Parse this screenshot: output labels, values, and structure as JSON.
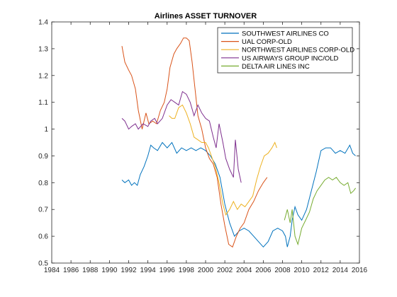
{
  "chart_data": {
    "type": "line",
    "title": "Airlines ASSET TURNOVER",
    "xlabel": "",
    "ylabel": "",
    "xlim": [
      1984,
      2016
    ],
    "ylim": [
      0.5,
      1.4
    ],
    "xticks": [
      1984,
      1986,
      1988,
      1990,
      1992,
      1994,
      1996,
      1998,
      2000,
      2002,
      2004,
      2006,
      2008,
      2010,
      2012,
      2014,
      2016
    ],
    "yticks": [
      0.5,
      0.6,
      0.7,
      0.8,
      0.9,
      1,
      1.1,
      1.2,
      1.3,
      1.4
    ],
    "grid": false,
    "legend_position": "top-right",
    "series": [
      {
        "name": "SOUTHWEST AIRLINES CO",
        "color": "#0072BD",
        "points": [
          [
            1991.3,
            0.81
          ],
          [
            1991.6,
            0.8
          ],
          [
            1992.0,
            0.81
          ],
          [
            1992.3,
            0.79
          ],
          [
            1992.6,
            0.8
          ],
          [
            1992.9,
            0.79
          ],
          [
            1993.2,
            0.83
          ],
          [
            1993.6,
            0.86
          ],
          [
            1994.0,
            0.9
          ],
          [
            1994.3,
            0.94
          ],
          [
            1994.6,
            0.93
          ],
          [
            1995.0,
            0.92
          ],
          [
            1995.5,
            0.95
          ],
          [
            1996.0,
            0.93
          ],
          [
            1996.5,
            0.95
          ],
          [
            1997.0,
            0.91
          ],
          [
            1997.5,
            0.93
          ],
          [
            1998.0,
            0.92
          ],
          [
            1998.5,
            0.93
          ],
          [
            1999.0,
            0.92
          ],
          [
            1999.5,
            0.93
          ],
          [
            2000.0,
            0.92
          ],
          [
            2000.5,
            0.9
          ],
          [
            2001.0,
            0.87
          ],
          [
            2001.5,
            0.82
          ],
          [
            2002.0,
            0.72
          ],
          [
            2002.5,
            0.65
          ],
          [
            2003.0,
            0.6
          ],
          [
            2003.5,
            0.62
          ],
          [
            2004.0,
            0.63
          ],
          [
            2004.5,
            0.62
          ],
          [
            2005.0,
            0.6
          ],
          [
            2005.5,
            0.58
          ],
          [
            2006.0,
            0.56
          ],
          [
            2006.5,
            0.58
          ],
          [
            2007.0,
            0.62
          ],
          [
            2007.5,
            0.63
          ],
          [
            2008.0,
            0.62
          ],
          [
            2008.3,
            0.6
          ],
          [
            2008.5,
            0.56
          ],
          [
            2008.8,
            0.6
          ],
          [
            2009.0,
            0.66
          ],
          [
            2009.3,
            0.71
          ],
          [
            2009.6,
            0.68
          ],
          [
            2010.0,
            0.66
          ],
          [
            2010.5,
            0.7
          ],
          [
            2011.0,
            0.77
          ],
          [
            2011.5,
            0.84
          ],
          [
            2012.0,
            0.92
          ],
          [
            2012.5,
            0.93
          ],
          [
            2013.0,
            0.93
          ],
          [
            2013.5,
            0.91
          ],
          [
            2014.0,
            0.92
          ],
          [
            2014.5,
            0.91
          ],
          [
            2015.0,
            0.94
          ],
          [
            2015.3,
            0.91
          ],
          [
            2015.6,
            0.9
          ]
        ]
      },
      {
        "name": "UAL CORP-OLD",
        "color": "#D95319",
        "points": [
          [
            1991.3,
            1.31
          ],
          [
            1991.6,
            1.25
          ],
          [
            1992.0,
            1.22
          ],
          [
            1992.3,
            1.2
          ],
          [
            1992.7,
            1.15
          ],
          [
            1993.0,
            1.07
          ],
          [
            1993.4,
            1.0
          ],
          [
            1993.8,
            1.06
          ],
          [
            1994.1,
            1.02
          ],
          [
            1994.5,
            1.03
          ],
          [
            1994.9,
            1.02
          ],
          [
            1995.3,
            1.07
          ],
          [
            1995.7,
            1.1
          ],
          [
            1996.0,
            1.15
          ],
          [
            1996.3,
            1.23
          ],
          [
            1996.7,
            1.28
          ],
          [
            1997.0,
            1.3
          ],
          [
            1997.4,
            1.32
          ],
          [
            1997.7,
            1.34
          ],
          [
            1998.0,
            1.34
          ],
          [
            1998.3,
            1.33
          ],
          [
            1998.6,
            1.25
          ],
          [
            1998.9,
            1.15
          ],
          [
            1999.2,
            1.05
          ],
          [
            1999.6,
            1.0
          ],
          [
            2000.0,
            0.93
          ],
          [
            2000.4,
            0.89
          ],
          [
            2000.8,
            0.87
          ],
          [
            2001.2,
            0.82
          ],
          [
            2001.6,
            0.72
          ],
          [
            2002.0,
            0.64
          ],
          [
            2002.4,
            0.57
          ],
          [
            2002.8,
            0.56
          ],
          [
            2003.2,
            0.6
          ],
          [
            2003.6,
            0.63
          ],
          [
            2004.0,
            0.65
          ],
          [
            2004.5,
            0.7
          ],
          [
            2005.0,
            0.73
          ],
          [
            2005.5,
            0.77
          ],
          [
            2006.0,
            0.8
          ],
          [
            2006.4,
            0.82
          ]
        ]
      },
      {
        "name": "NORTHWEST AIRLINES CORP-OLD",
        "color": "#EDB120",
        "points": [
          [
            1996.2,
            1.05
          ],
          [
            1996.5,
            1.04
          ],
          [
            1996.8,
            1.04
          ],
          [
            1997.2,
            1.08
          ],
          [
            1997.6,
            1.09
          ],
          [
            1998.0,
            1.06
          ],
          [
            1998.4,
            1.02
          ],
          [
            1998.8,
            0.97
          ],
          [
            1999.2,
            0.96
          ],
          [
            1999.6,
            0.95
          ],
          [
            2000.0,
            0.95
          ],
          [
            2000.3,
            0.93
          ],
          [
            2000.6,
            0.9
          ],
          [
            2001.0,
            0.86
          ],
          [
            2001.4,
            0.8
          ],
          [
            2001.8,
            0.72
          ],
          [
            2002.1,
            0.68
          ],
          [
            2002.5,
            0.7
          ],
          [
            2002.9,
            0.73
          ],
          [
            2003.3,
            0.7
          ],
          [
            2003.7,
            0.72
          ],
          [
            2004.1,
            0.71
          ],
          [
            2004.5,
            0.73
          ],
          [
            2004.9,
            0.75
          ],
          [
            2005.3,
            0.81
          ],
          [
            2005.7,
            0.86
          ],
          [
            2006.1,
            0.9
          ],
          [
            2006.5,
            0.91
          ],
          [
            2006.9,
            0.93
          ],
          [
            2007.2,
            0.95
          ],
          [
            2007.4,
            0.93
          ]
        ]
      },
      {
        "name": "US AIRWAYS GROUP INC/OLD",
        "color": "#7E2F8E",
        "points": [
          [
            1991.3,
            1.04
          ],
          [
            1991.6,
            1.03
          ],
          [
            1992.0,
            1.0
          ],
          [
            1992.3,
            1.01
          ],
          [
            1992.7,
            1.02
          ],
          [
            1993.0,
            1.0
          ],
          [
            1993.5,
            1.02
          ],
          [
            1994.0,
            1.01
          ],
          [
            1994.3,
            1.03
          ],
          [
            1994.7,
            1.04
          ],
          [
            1995.0,
            1.02
          ],
          [
            1995.5,
            1.04
          ],
          [
            1996.0,
            1.09
          ],
          [
            1996.4,
            1.11
          ],
          [
            1996.8,
            1.1
          ],
          [
            1997.2,
            1.09
          ],
          [
            1997.6,
            1.14
          ],
          [
            1998.0,
            1.13
          ],
          [
            1998.4,
            1.1
          ],
          [
            1998.8,
            1.05
          ],
          [
            1999.2,
            1.09
          ],
          [
            1999.6,
            1.06
          ],
          [
            2000.0,
            1.04
          ],
          [
            2000.4,
            1.03
          ],
          [
            2000.8,
            0.97
          ],
          [
            2001.1,
            0.93
          ],
          [
            2001.4,
            1.02
          ],
          [
            2001.8,
            0.95
          ],
          [
            2002.1,
            0.89
          ],
          [
            2002.5,
            0.85
          ],
          [
            2002.9,
            0.82
          ],
          [
            2003.1,
            0.96
          ],
          [
            2003.4,
            0.85
          ],
          [
            2003.7,
            0.8
          ]
        ]
      },
      {
        "name": "DELTA AIR LINES INC",
        "color": "#77AC30",
        "points": [
          [
            2008.2,
            0.66
          ],
          [
            2008.5,
            0.7
          ],
          [
            2008.8,
            0.65
          ],
          [
            2009.0,
            0.7
          ],
          [
            2009.3,
            0.6
          ],
          [
            2009.6,
            0.57
          ],
          [
            2010.0,
            0.63
          ],
          [
            2010.4,
            0.66
          ],
          [
            2010.8,
            0.69
          ],
          [
            2011.2,
            0.74
          ],
          [
            2011.6,
            0.77
          ],
          [
            2012.0,
            0.79
          ],
          [
            2012.4,
            0.81
          ],
          [
            2012.8,
            0.82
          ],
          [
            2013.2,
            0.81
          ],
          [
            2013.6,
            0.82
          ],
          [
            2014.0,
            0.8
          ],
          [
            2014.4,
            0.79
          ],
          [
            2014.8,
            0.8
          ],
          [
            2015.1,
            0.76
          ],
          [
            2015.4,
            0.77
          ],
          [
            2015.6,
            0.78
          ]
        ]
      }
    ]
  }
}
